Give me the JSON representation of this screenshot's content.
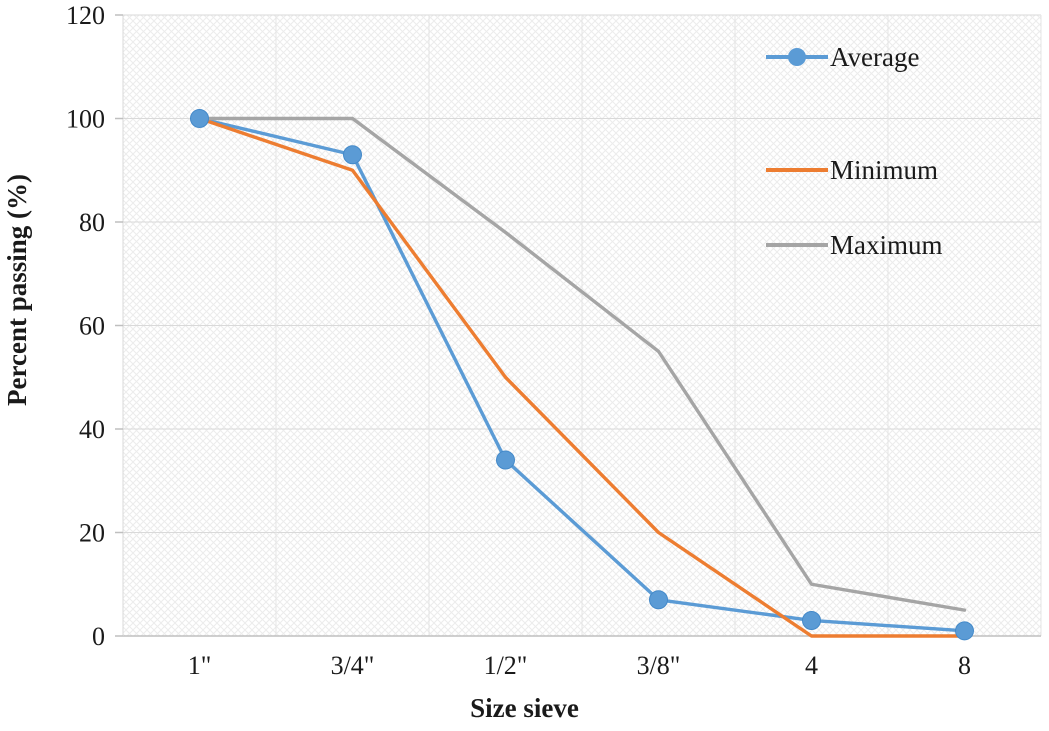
{
  "chart_data": {
    "type": "line",
    "title": "",
    "xlabel": "Size sieve",
    "ylabel": "Percent passing (%)",
    "categories": [
      "1\"",
      "3/4\"",
      "1/2\"",
      "3/8\"",
      "4",
      "8"
    ],
    "series": [
      {
        "name": "Average",
        "color": "#5B9BD5",
        "marker": "circle",
        "values": [
          100,
          93,
          34,
          7,
          3,
          1
        ]
      },
      {
        "name": "Minimum",
        "color": "#ED7D31",
        "marker": "none",
        "values": [
          100,
          90,
          50,
          20,
          0,
          0
        ]
      },
      {
        "name": "Maximum",
        "color": "#A5A5A5",
        "marker": "none",
        "values": [
          100,
          100,
          78,
          55,
          10,
          5
        ]
      }
    ],
    "ylim": [
      0,
      120
    ],
    "ytick_step": 20,
    "grid": true,
    "legend_position": "top-right",
    "plot_background": "hatched",
    "colors": {
      "gridline": "#d9d9d9",
      "axis": "#bfbfbf",
      "text": "#1a1a1a",
      "hatch": "#ececec"
    }
  }
}
